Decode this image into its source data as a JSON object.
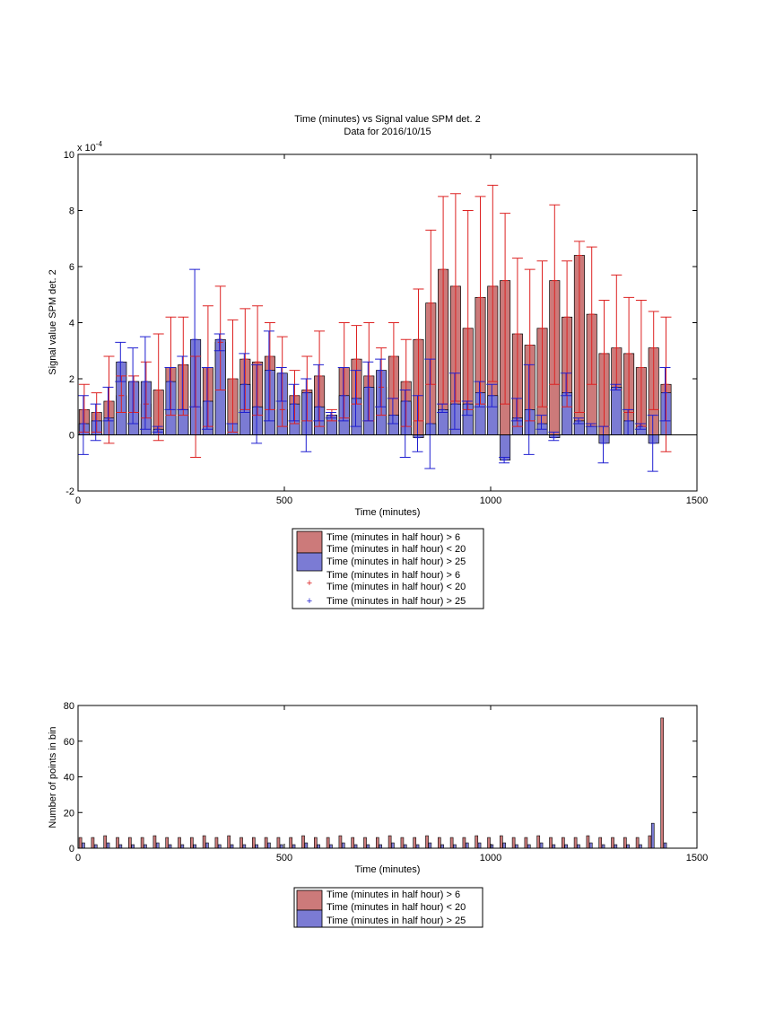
{
  "chart_data": [
    {
      "type": "bar",
      "title": "Time (minutes) vs Signal value SPM det. 2",
      "subtitle": "Data for 2016/10/15",
      "xlabel": "Time (minutes)",
      "ylabel": "Signal value SPM det. 2",
      "exponent_label": "x 10",
      "exponent_power": "-4",
      "xlim": [
        0,
        1500
      ],
      "ylim": [
        -2,
        10
      ],
      "xticks": [
        0,
        500,
        1000,
        1500
      ],
      "yticks": [
        -2,
        0,
        2,
        4,
        6,
        8,
        10
      ],
      "grid": false,
      "legend_position": "bottom",
      "legend": [
        "Time (minutes in half hour) > 6",
        "Time (minutes in half hour) < 20",
        "Time (minutes in half hour) > 25",
        "Time (minutes in half hour) > 6",
        "Time (minutes in half hour) < 20",
        "Time (minutes in half hour) > 25"
      ],
      "x": [
        15,
        45,
        75,
        105,
        135,
        165,
        195,
        225,
        255,
        285,
        315,
        345,
        375,
        405,
        435,
        465,
        495,
        525,
        555,
        585,
        615,
        645,
        675,
        705,
        735,
        765,
        795,
        825,
        855,
        885,
        915,
        945,
        975,
        1005,
        1035,
        1065,
        1095,
        1125,
        1155,
        1185,
        1215,
        1245,
        1275,
        1305,
        1335,
        1365,
        1395,
        1425
      ],
      "series": [
        {
          "name": "Time (minutes in half hour) > 6",
          "color": "#cc7a7a",
          "errorbar_color": "#dd2222",
          "values": [
            0.9,
            0.8,
            1.2,
            1.4,
            1.9,
            1.1,
            1.6,
            2.4,
            2.5,
            1.0,
            2.4,
            3.3,
            2.0,
            2.7,
            2.6,
            2.8,
            0.9,
            1.4,
            1.6,
            2.1,
            0.7,
            2.4,
            2.7,
            2.1,
            1.7,
            2.8,
            1.9,
            3.4,
            4.7,
            5.9,
            5.3,
            3.8,
            4.9,
            5.3,
            5.5,
            3.6,
            3.2,
            3.8,
            5.5,
            4.2,
            6.4,
            4.3,
            2.9,
            3.1,
            2.9,
            2.4,
            3.1,
            1.8
          ],
          "err_low": [
            0.1,
            0.1,
            -0.3,
            0.8,
            0.8,
            0.6,
            -0.2,
            0.7,
            0.7,
            -0.8,
            0.3,
            1.6,
            0.1,
            0.9,
            0.7,
            0.9,
            0.3,
            0.4,
            0.5,
            0.3,
            0.5,
            0.6,
            1.1,
            0.5,
            0.7,
            1.3,
            0.3,
            0.5,
            1.8,
            1.1,
            1.2,
            0.9,
            1.1,
            1.9,
            1.1,
            0.3,
            0.5,
            1.0,
            1.8,
            1.0,
            0.8,
            1.8,
            0.3,
            1.6,
            0.8,
            0.3,
            0.9,
            -0.6
          ],
          "err_high": [
            1.8,
            1.5,
            2.8,
            2.1,
            2.1,
            2.6,
            3.6,
            4.2,
            4.2,
            2.8,
            4.6,
            5.3,
            4.1,
            4.5,
            4.6,
            4.0,
            3.5,
            2.3,
            2.8,
            3.7,
            0.9,
            4.0,
            3.9,
            4.0,
            3.1,
            4.0,
            3.4,
            5.2,
            7.3,
            8.5,
            8.6,
            8.0,
            8.5,
            8.9,
            7.9,
            6.3,
            5.9,
            6.2,
            8.2,
            6.2,
            6.9,
            6.7,
            4.8,
            5.7,
            4.9,
            4.8,
            4.4,
            4.2
          ]
        },
        {
          "name": "Time (minutes in half hour) > 25",
          "color": "#7b7bd4",
          "errorbar_color": "#1f1fd0",
          "values": [
            0.4,
            0.5,
            0.6,
            2.6,
            1.9,
            1.9,
            0.2,
            1.9,
            0.9,
            3.4,
            1.2,
            3.4,
            0.4,
            1.8,
            1.0,
            2.3,
            2.2,
            1.1,
            1.5,
            1.0,
            0.7,
            1.4,
            1.3,
            1.7,
            2.3,
            0.7,
            1.2,
            -0.1,
            0.4,
            0.9,
            1.1,
            1.1,
            1.5,
            1.4,
            -0.9,
            0.6,
            0.9,
            0.4,
            -0.1,
            1.5,
            0.5,
            0.3,
            -0.3,
            1.7,
            0.5,
            0.3,
            -0.3,
            1.5
          ],
          "err_low": [
            -0.7,
            -0.2,
            0.5,
            1.9,
            0.4,
            0.2,
            0.1,
            0.9,
            0.9,
            1.0,
            0.2,
            3.0,
            0.4,
            0.8,
            -0.3,
            0.5,
            1.2,
            0.5,
            -0.6,
            0.5,
            0.6,
            0.5,
            0.3,
            0.5,
            1.0,
            0.4,
            -0.8,
            -0.6,
            -1.2,
            0.8,
            0.2,
            0.7,
            1.0,
            1.0,
            -1.0,
            0.5,
            -0.7,
            0.2,
            -0.2,
            1.4,
            0.4,
            0.3,
            -1.0,
            1.6,
            0.0,
            0.2,
            -1.3,
            0.5
          ],
          "err_high": [
            1.4,
            1.1,
            1.7,
            3.3,
            3.1,
            3.5,
            0.3,
            2.4,
            2.8,
            5.9,
            2.4,
            3.6,
            0.4,
            2.9,
            2.5,
            3.7,
            2.4,
            1.8,
            2.0,
            2.5,
            0.8,
            2.4,
            2.3,
            2.6,
            2.7,
            1.3,
            1.6,
            1.4,
            2.7,
            1.1,
            2.2,
            1.2,
            1.9,
            1.8,
            -0.8,
            1.3,
            2.5,
            0.7,
            0.1,
            2.2,
            0.6,
            0.4,
            0.3,
            1.8,
            0.9,
            0.4,
            0.7,
            2.4
          ]
        }
      ]
    },
    {
      "type": "bar",
      "xlabel": "Time (minutes)",
      "ylabel": "Number of points in bin",
      "xlim": [
        0,
        1500
      ],
      "ylim": [
        0,
        80
      ],
      "xticks": [
        0,
        500,
        1000,
        1500
      ],
      "yticks": [
        0,
        20,
        40,
        60,
        80
      ],
      "grid": false,
      "legend_position": "bottom",
      "legend": [
        "Time (minutes in half hour) > 6",
        "Time (minutes in half hour) < 20",
        "Time (minutes in half hour) > 25"
      ],
      "x": [
        15,
        45,
        75,
        105,
        135,
        165,
        195,
        225,
        255,
        285,
        315,
        345,
        375,
        405,
        435,
        465,
        495,
        525,
        555,
        585,
        615,
        645,
        675,
        705,
        735,
        765,
        795,
        825,
        855,
        885,
        915,
        945,
        975,
        1005,
        1035,
        1065,
        1095,
        1125,
        1155,
        1185,
        1215,
        1245,
        1275,
        1305,
        1335,
        1365,
        1395,
        1425
      ],
      "series": [
        {
          "name": "Time (minutes in half hour) > 6",
          "color": "#cc7a7a",
          "values": [
            6,
            6,
            7,
            6,
            6,
            6,
            7,
            6,
            6,
            6,
            7,
            6,
            7,
            6,
            6,
            6,
            6,
            6,
            7,
            6,
            6,
            7,
            6,
            6,
            6,
            7,
            6,
            6,
            7,
            6,
            6,
            6,
            7,
            6,
            7,
            6,
            6,
            7,
            6,
            6,
            6,
            7,
            6,
            6,
            6,
            6,
            7,
            73
          ]
        },
        {
          "name": "Time (minutes in half hour) > 25",
          "color": "#7b7bd4",
          "values": [
            3,
            2,
            3,
            2,
            2,
            2,
            3,
            2,
            2,
            2,
            3,
            2,
            2,
            2,
            2,
            3,
            2,
            2,
            3,
            2,
            2,
            3,
            2,
            2,
            2,
            3,
            2,
            2,
            3,
            2,
            2,
            3,
            3,
            2,
            3,
            2,
            2,
            3,
            2,
            2,
            2,
            3,
            2,
            2,
            2,
            2,
            14,
            3
          ]
        }
      ]
    }
  ]
}
